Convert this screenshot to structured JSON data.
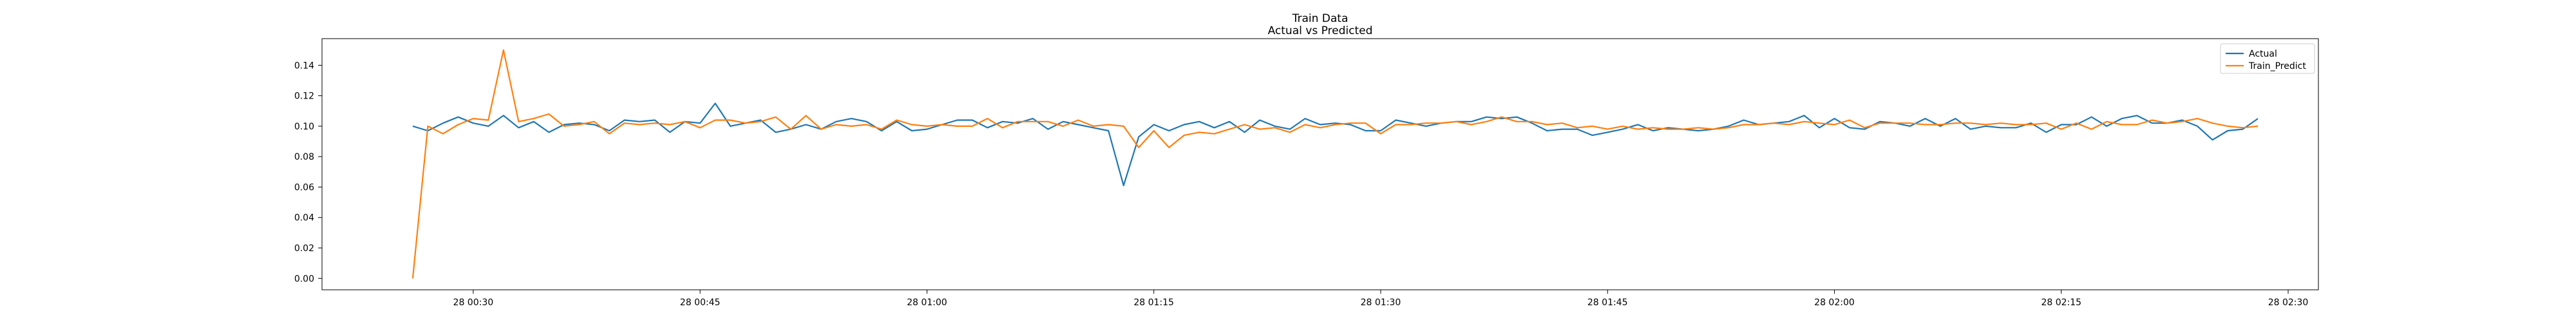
{
  "chart_data": {
    "type": "line",
    "title": "Train Data",
    "subtitle": "Actual vs Predicted",
    "xlabel": "",
    "ylabel": "",
    "x_start": "28 00:26",
    "x_step_minutes": 1,
    "xlim": [
      "28 00:20",
      "28 02:32"
    ],
    "ylim": [
      -0.0075,
      0.1575
    ],
    "x_ticks": [
      {
        "label": "28 00:30",
        "minute": 30
      },
      {
        "label": "28 00:45",
        "minute": 45
      },
      {
        "label": "28 01:00",
        "minute": 60
      },
      {
        "label": "28 01:15",
        "minute": 75
      },
      {
        "label": "28 01:30",
        "minute": 90
      },
      {
        "label": "28 01:45",
        "minute": 105
      },
      {
        "label": "28 02:00",
        "minute": 120
      },
      {
        "label": "28 02:15",
        "minute": 135
      },
      {
        "label": "28 02:30",
        "minute": 150
      }
    ],
    "y_ticks": [
      {
        "label": "0.00",
        "value": 0.0
      },
      {
        "label": "0.02",
        "value": 0.02
      },
      {
        "label": "0.04",
        "value": 0.04
      },
      {
        "label": "0.06",
        "value": 0.06
      },
      {
        "label": "0.08",
        "value": 0.08
      },
      {
        "label": "0.10",
        "value": 0.1
      },
      {
        "label": "0.12",
        "value": 0.12
      },
      {
        "label": "0.14",
        "value": 0.14
      }
    ],
    "grid": false,
    "legend_position": "top-right",
    "series": [
      {
        "name": "Actual",
        "color": "#1f77b4",
        "values": [
          0.1,
          0.097,
          0.102,
          0.106,
          0.102,
          0.1,
          0.107,
          0.099,
          0.103,
          0.096,
          0.101,
          0.102,
          0.101,
          0.097,
          0.104,
          0.103,
          0.104,
          0.096,
          0.103,
          0.102,
          0.115,
          0.1,
          0.102,
          0.104,
          0.096,
          0.098,
          0.101,
          0.098,
          0.103,
          0.105,
          0.103,
          0.097,
          0.103,
          0.097,
          0.098,
          0.101,
          0.104,
          0.104,
          0.099,
          0.103,
          0.102,
          0.105,
          0.098,
          0.103,
          0.101,
          0.099,
          0.097,
          0.061,
          0.093,
          0.101,
          0.097,
          0.101,
          0.103,
          0.099,
          0.103,
          0.096,
          0.104,
          0.1,
          0.098,
          0.105,
          0.101,
          0.102,
          0.101,
          0.097,
          0.097,
          0.104,
          0.102,
          0.1,
          0.102,
          0.103,
          0.103,
          0.106,
          0.105,
          0.106,
          0.102,
          0.097,
          0.098,
          0.098,
          0.094,
          0.096,
          0.098,
          0.101,
          0.097,
          0.099,
          0.098,
          0.097,
          0.098,
          0.1,
          0.104,
          0.101,
          0.102,
          0.103,
          0.107,
          0.099,
          0.105,
          0.099,
          0.098,
          0.103,
          0.102,
          0.1,
          0.105,
          0.1,
          0.105,
          0.098,
          0.1,
          0.099,
          0.099,
          0.102,
          0.096,
          0.101,
          0.101,
          0.106,
          0.1,
          0.105,
          0.107,
          0.102,
          0.102,
          0.104,
          0.1,
          0.091,
          0.097,
          0.098,
          0.105
        ]
      },
      {
        "name": "Train_Predict",
        "color": "#ff7f0e",
        "values": [
          0.0,
          0.1,
          0.095,
          0.101,
          0.105,
          0.104,
          0.15,
          0.103,
          0.105,
          0.108,
          0.1,
          0.101,
          0.103,
          0.095,
          0.102,
          0.101,
          0.102,
          0.101,
          0.103,
          0.099,
          0.104,
          0.104,
          0.102,
          0.103,
          0.106,
          0.098,
          0.107,
          0.098,
          0.101,
          0.1,
          0.101,
          0.098,
          0.104,
          0.101,
          0.1,
          0.101,
          0.1,
          0.1,
          0.105,
          0.099,
          0.103,
          0.103,
          0.103,
          0.1,
          0.104,
          0.1,
          0.101,
          0.1,
          0.086,
          0.097,
          0.086,
          0.094,
          0.096,
          0.095,
          0.098,
          0.101,
          0.098,
          0.099,
          0.096,
          0.101,
          0.099,
          0.101,
          0.102,
          0.102,
          0.095,
          0.101,
          0.101,
          0.102,
          0.102,
          0.103,
          0.101,
          0.103,
          0.106,
          0.103,
          0.103,
          0.101,
          0.102,
          0.099,
          0.1,
          0.098,
          0.1,
          0.098,
          0.099,
          0.098,
          0.098,
          0.099,
          0.098,
          0.099,
          0.101,
          0.101,
          0.102,
          0.101,
          0.103,
          0.102,
          0.101,
          0.104,
          0.099,
          0.102,
          0.102,
          0.102,
          0.101,
          0.101,
          0.102,
          0.102,
          0.101,
          0.102,
          0.101,
          0.101,
          0.102,
          0.098,
          0.102,
          0.098,
          0.103,
          0.101,
          0.101,
          0.104,
          0.102,
          0.103,
          0.105,
          0.102,
          0.1,
          0.099,
          0.1
        ]
      }
    ]
  }
}
